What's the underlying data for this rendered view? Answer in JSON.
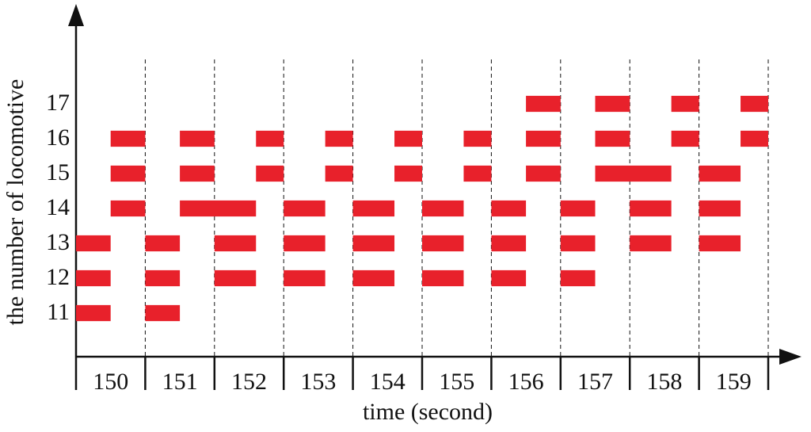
{
  "chart_data": {
    "type": "gantt",
    "x_label": "time  (second)",
    "y_label": "the number of locomotive",
    "color": "#e8212b",
    "xlim": [
      150,
      160
    ],
    "xticks": [
      150,
      151,
      152,
      153,
      154,
      155,
      156,
      157,
      158,
      159,
      160
    ],
    "x_interval_labels": [
      150,
      151,
      152,
      153,
      154,
      155,
      156,
      157,
      158,
      159
    ],
    "ylim": [
      9.75,
      18
    ],
    "yticks": [
      11,
      12,
      13,
      14,
      15,
      16,
      17
    ],
    "rows": [
      {
        "row": 11,
        "bars": [
          [
            150,
            150.5
          ],
          [
            151,
            151.5
          ]
        ]
      },
      {
        "row": 12,
        "bars": [
          [
            150,
            150.5
          ],
          [
            151,
            151.5
          ],
          [
            152,
            152.6
          ],
          [
            153,
            153.6
          ],
          [
            154,
            154.6
          ],
          [
            155,
            155.6
          ],
          [
            156,
            156.5
          ],
          [
            157,
            157.5
          ]
        ]
      },
      {
        "row": 13,
        "bars": [
          [
            150,
            150.5
          ],
          [
            151,
            151.5
          ],
          [
            152,
            152.6
          ],
          [
            153,
            153.6
          ],
          [
            154,
            154.6
          ],
          [
            155,
            155.6
          ],
          [
            156,
            156.5
          ],
          [
            157,
            157.5
          ],
          [
            158,
            158.6
          ],
          [
            159,
            159.6
          ]
        ]
      },
      {
        "row": 14,
        "bars": [
          [
            150.5,
            151
          ],
          [
            151.5,
            152.6
          ],
          [
            153,
            153.6
          ],
          [
            154,
            154.6
          ],
          [
            155,
            155.6
          ],
          [
            156,
            156.5
          ],
          [
            157,
            157.5
          ],
          [
            158,
            158.6
          ],
          [
            159,
            159.6
          ]
        ]
      },
      {
        "row": 15,
        "bars": [
          [
            150.5,
            151
          ],
          [
            151.5,
            152
          ],
          [
            152.6,
            153
          ],
          [
            153.6,
            154
          ],
          [
            154.6,
            155
          ],
          [
            155.6,
            156
          ],
          [
            156.5,
            157
          ],
          [
            157.5,
            158.6
          ],
          [
            159,
            159.6
          ]
        ]
      },
      {
        "row": 16,
        "bars": [
          [
            150.5,
            151
          ],
          [
            151.5,
            152
          ],
          [
            152.6,
            153
          ],
          [
            153.6,
            154
          ],
          [
            154.6,
            155
          ],
          [
            155.6,
            156
          ],
          [
            156.5,
            157
          ],
          [
            157.5,
            158
          ],
          [
            158.6,
            159
          ],
          [
            159.6,
            160
          ]
        ]
      },
      {
        "row": 17,
        "bars": [
          [
            156.5,
            157
          ],
          [
            157.5,
            158
          ],
          [
            158.6,
            159
          ],
          [
            159.6,
            160
          ]
        ]
      }
    ]
  }
}
